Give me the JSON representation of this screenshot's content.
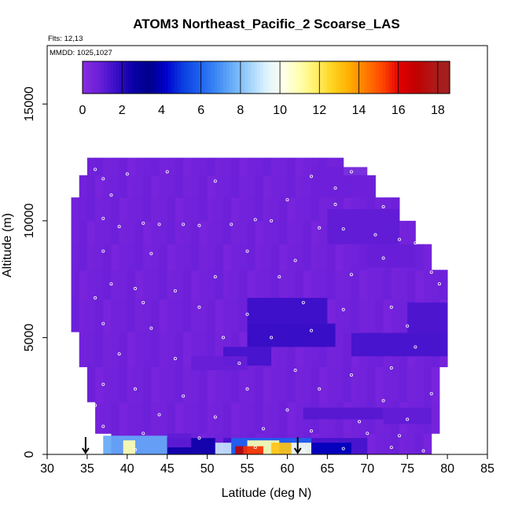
{
  "chart_data": {
    "type": "heatmap",
    "title": "ATOM3 Northeast_Pacific_2 Scoarse_LAS",
    "annotations": {
      "flights": "Flts: 12,13",
      "dates": "MMDD: 1025,1027"
    },
    "xlabel": "Latitude (deg N)",
    "ylabel": "Altitude (m)",
    "xlim": [
      30,
      85
    ],
    "ylim": [
      0,
      17500
    ],
    "xticks": [
      "30",
      "35",
      "40",
      "45",
      "50",
      "55",
      "60",
      "65",
      "70",
      "75",
      "80",
      "85"
    ],
    "yticks": [
      "0",
      "5000",
      "10000",
      "15000"
    ],
    "colorbar": {
      "ticks": [
        "0",
        "2",
        "4",
        "6",
        "8",
        "10",
        "12",
        "14",
        "16",
        "18"
      ],
      "range": [
        0,
        18.6
      ],
      "palette": [
        "#8a2be2",
        "#6a1fd8",
        "#3a0fc8",
        "#0a00a8",
        "#00008b",
        "#0000cd",
        "#0a3ee0",
        "#1e60f0",
        "#3c88f4",
        "#6aaef8",
        "#a0d2fc",
        "#dcf2ff",
        "#ffffee",
        "#ffffb0",
        "#fff066",
        "#ffd21e",
        "#ffae00",
        "#ff7800",
        "#ff4400",
        "#e10000",
        "#c00000",
        "#b01818",
        "#a02020"
      ]
    },
    "base_value": 0.5,
    "coverage": [
      {
        "alt": 300,
        "lat_min": 38,
        "lat_max": 78
      },
      {
        "alt": 1500,
        "lat_min": 36,
        "lat_max": 79
      },
      {
        "alt": 3000,
        "lat_min": 35,
        "lat_max": 79
      },
      {
        "alt": 4500,
        "lat_min": 34,
        "lat_max": 80
      },
      {
        "alt": 6000,
        "lat_min": 33,
        "lat_max": 80
      },
      {
        "alt": 7300,
        "lat_min": 33,
        "lat_max": 80
      },
      {
        "alt": 8500,
        "lat_min": 33,
        "lat_max": 78
      },
      {
        "alt": 9500,
        "lat_min": 33,
        "lat_max": 76
      },
      {
        "alt": 10500,
        "lat_min": 33,
        "lat_max": 74
      },
      {
        "alt": 11500,
        "lat_min": 34,
        "lat_max": 71
      },
      {
        "alt": 12400,
        "lat_min": 35,
        "lat_max": 67
      }
    ],
    "features": [
      {
        "lat": [
          52,
          70
        ],
        "alt": [
          0,
          700
        ],
        "value": 1.5
      },
      {
        "lat": [
          37,
          45
        ],
        "alt": [
          0,
          800
        ],
        "value": 7.5
      },
      {
        "lat": [
          39.5,
          41
        ],
        "alt": [
          0,
          600
        ],
        "value": 11
      },
      {
        "lat": [
          45,
          51
        ],
        "alt": [
          0,
          700
        ],
        "value": 2.5
      },
      {
        "lat": [
          53,
          63
        ],
        "alt": [
          0,
          700
        ],
        "value": 6
      },
      {
        "lat": [
          55,
          59
        ],
        "alt": [
          0,
          600
        ],
        "value": 11
      },
      {
        "lat": [
          58,
          60.5
        ],
        "alt": [
          0,
          500
        ],
        "value": 13
      },
      {
        "lat": [
          54.5,
          57
        ],
        "alt": [
          0,
          350
        ],
        "value": 15.5
      },
      {
        "lat": [
          53.5,
          54.5
        ],
        "alt": [
          0,
          350
        ],
        "value": 17
      },
      {
        "lat": [
          60.5,
          63
        ],
        "alt": [
          0,
          500
        ],
        "value": 10
      },
      {
        "lat": [
          63,
          68
        ],
        "alt": [
          0,
          500
        ],
        "value": 4
      },
      {
        "lat": [
          51,
          53
        ],
        "alt": [
          0,
          500
        ],
        "value": 9
      },
      {
        "lat": [
          45,
          48
        ],
        "alt": [
          300,
          900
        ],
        "value": 1
      },
      {
        "lat": [
          52,
          58
        ],
        "alt": [
          3800,
          4600
        ],
        "value": 1.5
      },
      {
        "lat": [
          55,
          66
        ],
        "alt": [
          4600,
          5600
        ],
        "value": 1.8
      },
      {
        "lat": [
          55,
          65
        ],
        "alt": [
          5600,
          6700
        ],
        "value": 1.7
      },
      {
        "lat": [
          62,
          72
        ],
        "alt": [
          1500,
          2000
        ],
        "value": 1.2
      },
      {
        "lat": [
          68,
          80
        ],
        "alt": [
          4200,
          5200
        ],
        "value": 1.5
      },
      {
        "lat": [
          75,
          80
        ],
        "alt": [
          5200,
          6500
        ],
        "value": 1.4
      },
      {
        "lat": [
          72,
          78
        ],
        "alt": [
          1300,
          2000
        ],
        "value": 1.0
      },
      {
        "lat": [
          48,
          55
        ],
        "alt": [
          3600,
          4200
        ],
        "value": 0.9
      },
      {
        "lat": [
          65,
          74
        ],
        "alt": [
          9000,
          10500
        ],
        "value": 1.0
      },
      {
        "lat": [
          70,
          76
        ],
        "alt": [
          8000,
          9000
        ],
        "value": 0.9
      },
      {
        "lat": [
          63,
          70
        ],
        "alt": [
          11000,
          12300
        ],
        "value": 0.8
      }
    ],
    "flight_points": [
      [
        36,
        12200
      ],
      [
        37,
        11800
      ],
      [
        40,
        12000
      ],
      [
        45,
        12100
      ],
      [
        51,
        11700
      ],
      [
        63,
        11900
      ],
      [
        66,
        11400
      ],
      [
        68,
        12100
      ],
      [
        38,
        11100
      ],
      [
        60,
        10900
      ],
      [
        66,
        10700
      ],
      [
        72,
        10600
      ],
      [
        37,
        10100
      ],
      [
        42,
        9900
      ],
      [
        44,
        9850
      ],
      [
        47,
        9850
      ],
      [
        49,
        9800
      ],
      [
        53,
        9850
      ],
      [
        39,
        9750
      ],
      [
        56,
        10050
      ],
      [
        58,
        10000
      ],
      [
        64,
        9700
      ],
      [
        67,
        9650
      ],
      [
        71,
        9400
      ],
      [
        74,
        9200
      ],
      [
        76,
        9050
      ],
      [
        37,
        8700
      ],
      [
        43,
        8600
      ],
      [
        55,
        8700
      ],
      [
        61,
        8300
      ],
      [
        72,
        8400
      ],
      [
        78,
        7800
      ],
      [
        38,
        7300
      ],
      [
        41,
        7100
      ],
      [
        46,
        7000
      ],
      [
        51,
        7600
      ],
      [
        59,
        7600
      ],
      [
        68,
        7700
      ],
      [
        79,
        7300
      ],
      [
        36,
        6700
      ],
      [
        42,
        6500
      ],
      [
        49,
        6300
      ],
      [
        55,
        6000
      ],
      [
        62,
        6500
      ],
      [
        67,
        6200
      ],
      [
        73,
        6300
      ],
      [
        37,
        5600
      ],
      [
        43,
        5400
      ],
      [
        52,
        5000
      ],
      [
        58,
        5000
      ],
      [
        63,
        5300
      ],
      [
        75,
        5500
      ],
      [
        76,
        4600
      ],
      [
        39,
        4300
      ],
      [
        46,
        4100
      ],
      [
        54,
        3900
      ],
      [
        61,
        3600
      ],
      [
        68,
        3400
      ],
      [
        73,
        3700
      ],
      [
        37,
        3000
      ],
      [
        41,
        2800
      ],
      [
        47,
        2500
      ],
      [
        55,
        2800
      ],
      [
        64,
        2800
      ],
      [
        72,
        2300
      ],
      [
        78,
        2600
      ],
      [
        36,
        2100
      ],
      [
        44,
        1700
      ],
      [
        51,
        1600
      ],
      [
        60,
        1900
      ],
      [
        69,
        1400
      ],
      [
        75,
        1500
      ],
      [
        37,
        1200
      ],
      [
        42,
        900
      ],
      [
        49,
        700
      ],
      [
        57,
        1100
      ],
      [
        63,
        1000
      ],
      [
        70,
        900
      ],
      [
        74,
        800
      ],
      [
        79,
        700
      ],
      [
        41,
        200
      ],
      [
        56,
        300
      ],
      [
        62,
        150
      ],
      [
        67,
        250
      ],
      [
        73,
        300
      ],
      [
        77,
        150
      ]
    ],
    "arrows": [
      34.8,
      61.3
    ]
  }
}
